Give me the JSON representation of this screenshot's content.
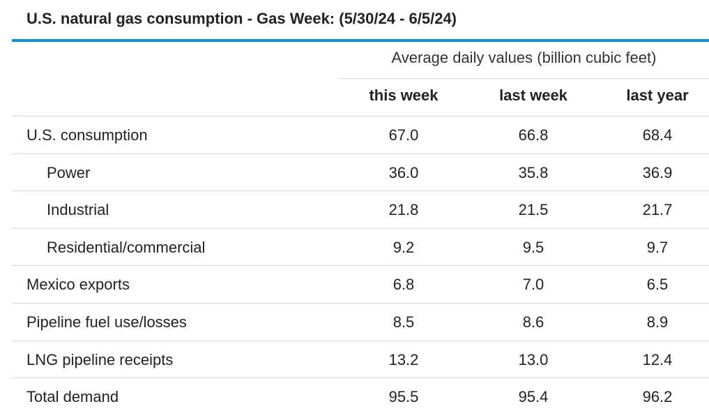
{
  "title": "U.S. natural gas consumption - Gas Week: (5/30/24 - 6/5/24)",
  "accent_color": "#0096d6",
  "chart_data": {
    "type": "table",
    "title": "U.S. natural gas consumption - Gas Week: (5/30/24 - 6/5/24)",
    "subheader": "Average daily values (billion cubic feet)",
    "columns": [
      "this week",
      "last week",
      "last year"
    ],
    "rows": [
      {
        "label": "U.S. consumption",
        "indent": 0,
        "values": [
          "67.0",
          "66.8",
          "68.4"
        ]
      },
      {
        "label": "Power",
        "indent": 1,
        "values": [
          "36.0",
          "35.8",
          "36.9"
        ]
      },
      {
        "label": "Industrial",
        "indent": 1,
        "values": [
          "21.8",
          "21.5",
          "21.7"
        ]
      },
      {
        "label": "Residential/commercial",
        "indent": 1,
        "values": [
          "9.2",
          "9.5",
          "9.7"
        ]
      },
      {
        "label": "Mexico exports",
        "indent": 0,
        "values": [
          "6.8",
          "7.0",
          "6.5"
        ]
      },
      {
        "label": "Pipeline fuel use/losses",
        "indent": 0,
        "values": [
          "8.5",
          "8.6",
          "8.9"
        ]
      },
      {
        "label": "LNG pipeline receipts",
        "indent": 0,
        "values": [
          "13.2",
          "13.0",
          "12.4"
        ]
      },
      {
        "label": "Total demand",
        "indent": 0,
        "values": [
          "95.5",
          "95.4",
          "96.2"
        ]
      }
    ]
  }
}
